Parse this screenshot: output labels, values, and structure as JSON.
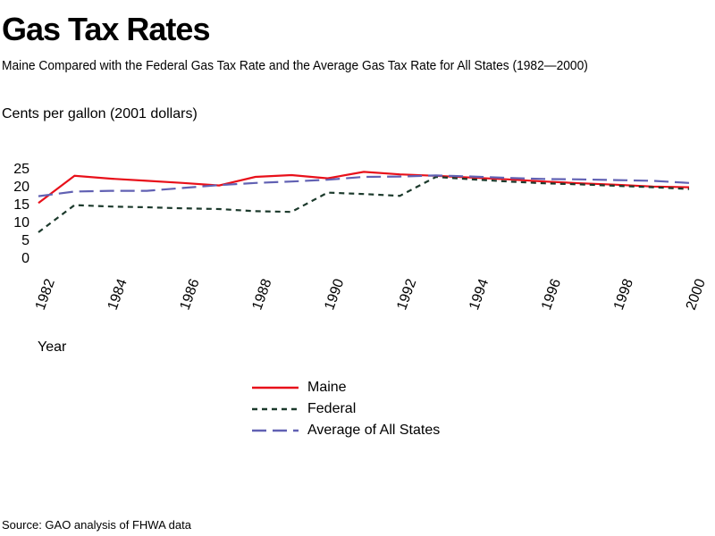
{
  "header": {
    "title": "Gas Tax Rates",
    "subtitle": "Maine Compared with the Federal Gas Tax Rate and the Average Gas Tax Rate for All States (1982—2000)"
  },
  "footer": {
    "source": "Source: GAO analysis of FHWA data"
  },
  "chart_data": {
    "type": "line",
    "title": "Gas Tax Rates",
    "subtitle": "Maine Compared with the Federal Gas Tax Rate and the Average Gas Tax Rate for All States (1982—2000)",
    "xlabel": "Year",
    "ylabel": "Cents per gallon (2001 dollars)",
    "x": [
      1982,
      1983,
      1984,
      1985,
      1986,
      1987,
      1988,
      1989,
      1990,
      1991,
      1992,
      1993,
      1994,
      1995,
      1996,
      1997,
      1998,
      1999,
      2000
    ],
    "xticks": [
      "1982",
      "1984",
      "1986",
      "1988",
      "1990",
      "1992",
      "1994",
      "1996",
      "1998",
      "2000"
    ],
    "yticks": [
      "0",
      "5",
      "10",
      "15",
      "20",
      "25"
    ],
    "ylim": [
      0,
      25
    ],
    "xlim": [
      1982,
      2000
    ],
    "grid": false,
    "legend_position": "bottom-center",
    "series": [
      {
        "name": "Maine",
        "color": "#e8101a",
        "dash": "solid",
        "values": [
          15.2,
          22.8,
          22.0,
          21.4,
          20.8,
          20.1,
          22.5,
          23.0,
          22.1,
          23.9,
          23.2,
          22.8,
          22.3,
          21.8,
          21.2,
          20.7,
          20.3,
          19.8,
          19.6
        ]
      },
      {
        "name": "Federal",
        "color": "#1c3a2c",
        "dash": "short",
        "values": [
          7.0,
          14.6,
          14.2,
          14.0,
          13.7,
          13.5,
          12.9,
          12.7,
          18.1,
          17.7,
          17.2,
          22.5,
          21.8,
          21.2,
          20.7,
          20.4,
          20.0,
          19.6,
          19.1
        ]
      },
      {
        "name": "Average of All States",
        "color": "#6161b3",
        "dash": "long",
        "values": [
          17.1,
          18.4,
          18.6,
          18.6,
          19.4,
          20.2,
          20.8,
          21.2,
          21.7,
          22.5,
          22.6,
          22.9,
          22.6,
          22.2,
          21.9,
          21.8,
          21.6,
          21.4,
          20.8
        ]
      }
    ]
  }
}
